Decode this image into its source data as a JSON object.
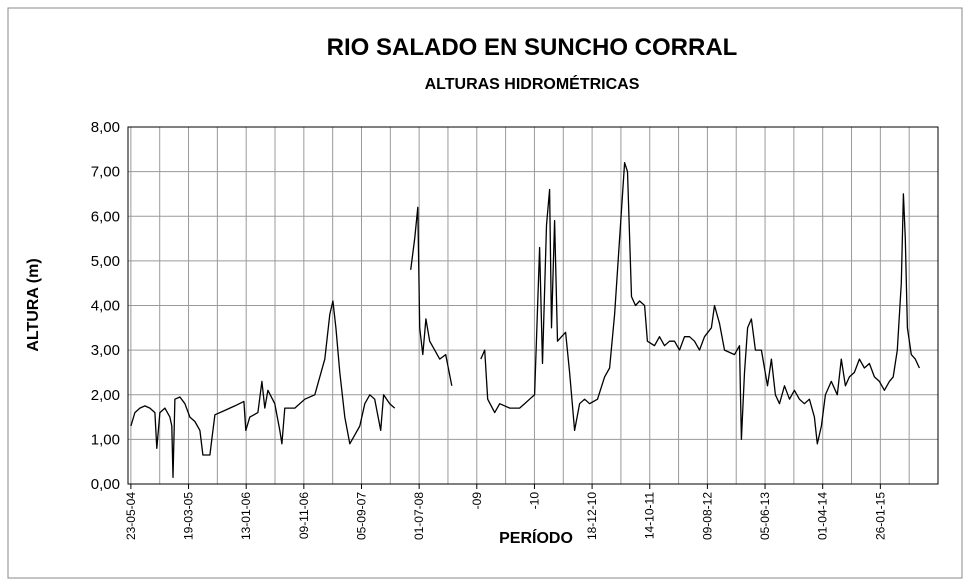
{
  "chart_data": {
    "type": "line",
    "title": "RIO SALADO EN SUNCHO CORRAL",
    "subtitle": "ALTURAS HIDROMÉTRICAS",
    "ylabel": "ALTURA (m)",
    "xlabel": "PERÍODO",
    "color": "#000000",
    "grid": true,
    "xlim": [
      -15,
      4200
    ],
    "xticks": [
      {
        "value": 0,
        "label": "23-05-04"
      },
      {
        "value": 300,
        "label": "19-03-05"
      },
      {
        "value": 600,
        "label": "13-01-06"
      },
      {
        "value": 900,
        "label": "09-11-06"
      },
      {
        "value": 1200,
        "label": "05-09-07"
      },
      {
        "value": 1500,
        "label": "01-07-08"
      },
      {
        "value": 1800,
        "label": "-09"
      },
      {
        "value": 2100,
        "label": "-10"
      },
      {
        "value": 2400,
        "label": "18-12-10"
      },
      {
        "value": 2700,
        "label": "14-10-11"
      },
      {
        "value": 3000,
        "label": "09-08-12"
      },
      {
        "value": 3300,
        "label": "05-06-13"
      },
      {
        "value": 3600,
        "label": "01-04-14"
      },
      {
        "value": 3900,
        "label": "26-01-15"
      }
    ],
    "xminorticks": [
      150,
      450,
      750,
      1050,
      1350,
      1650,
      1950,
      2250,
      2550,
      2850,
      3150,
      3450,
      3750,
      4050
    ],
    "ylim": [
      0,
      8
    ],
    "yticks": [
      {
        "value": 0,
        "label": "0,00"
      },
      {
        "value": 1,
        "label": "1,00"
      },
      {
        "value": 2,
        "label": "2,00"
      },
      {
        "value": 3,
        "label": "3,00"
      },
      {
        "value": 4,
        "label": "4,00"
      },
      {
        "value": 5,
        "label": "5,00"
      },
      {
        "value": 6,
        "label": "6,00"
      },
      {
        "value": 7,
        "label": "7,00"
      },
      {
        "value": 8,
        "label": "8,00"
      }
    ],
    "x": [
      0,
      21,
      47,
      73,
      99,
      125,
      135,
      151,
      177,
      203,
      213,
      219,
      229,
      255,
      281,
      307,
      333,
      359,
      375,
      411,
      421,
      437,
      489,
      541,
      588,
      598,
      619,
      661,
      682,
      697,
      713,
      749,
      775,
      786,
      801,
      853,
      905,
      957,
      983,
      1009,
      1035,
      1051,
      1067,
      1087,
      1113,
      1139,
      1165,
      1191,
      1217,
      1243,
      1269,
      1300,
      1315,
      1347,
      1373,
      1400,
      1456,
      1477,
      1493,
      1503,
      1519,
      1535,
      1555,
      1581,
      1607,
      1638,
      1670,
      1720,
      1821,
      1841,
      1857,
      1893,
      1919,
      1971,
      2023,
      2049,
      2075,
      2101,
      2127,
      2142,
      2163,
      2179,
      2189,
      2205,
      2220,
      2241,
      2262,
      2283,
      2309,
      2335,
      2361,
      2387,
      2428,
      2465,
      2491,
      2517,
      2543,
      2569,
      2584,
      2605,
      2626,
      2647,
      2673,
      2688,
      2725,
      2751,
      2777,
      2803,
      2829,
      2855,
      2881,
      2907,
      2933,
      2959,
      2985,
      3021,
      3037,
      3063,
      3089,
      3141,
      3167,
      3177,
      3193,
      3209,
      3229,
      3250,
      3281,
      3313,
      3333,
      3354,
      3375,
      3401,
      3427,
      3453,
      3479,
      3505,
      3531,
      3557,
      3572,
      3593,
      3614,
      3645,
      3676,
      3697,
      3718,
      3739,
      3765,
      3791,
      3817,
      3843,
      3869,
      3895,
      3921,
      3947,
      3967,
      3988,
      4009,
      4020,
      4030,
      4041,
      4061,
      4082,
      4103
    ],
    "values": [
      1.3,
      1.6,
      1.7,
      1.75,
      1.7,
      1.6,
      0.8,
      1.6,
      1.7,
      1.5,
      1.3,
      0.15,
      1.9,
      1.95,
      1.8,
      1.5,
      1.4,
      1.2,
      0.65,
      0.65,
      1.0,
      1.55,
      1.65,
      1.75,
      1.85,
      1.2,
      1.5,
      1.6,
      2.3,
      1.7,
      2.1,
      1.8,
      1.2,
      0.9,
      1.7,
      1.7,
      1.9,
      2.0,
      2.4,
      2.8,
      3.8,
      4.1,
      3.5,
      2.5,
      1.5,
      0.9,
      1.1,
      1.3,
      1.8,
      2.0,
      1.9,
      1.2,
      2.0,
      1.8,
      1.7,
      null,
      4.8,
      5.5,
      6.2,
      3.5,
      2.9,
      3.7,
      3.2,
      3.0,
      2.8,
      2.9,
      2.2,
      null,
      2.8,
      3.0,
      1.9,
      1.6,
      1.8,
      1.7,
      1.7,
      1.8,
      1.9,
      2.0,
      5.3,
      2.7,
      5.8,
      6.6,
      3.5,
      5.9,
      3.2,
      3.3,
      3.4,
      2.5,
      1.2,
      1.8,
      1.9,
      1.8,
      1.9,
      2.4,
      2.6,
      3.8,
      5.5,
      7.2,
      7.0,
      4.2,
      4.0,
      4.1,
      4.0,
      3.2,
      3.1,
      3.3,
      3.1,
      3.2,
      3.2,
      3.0,
      3.3,
      3.3,
      3.2,
      3.0,
      3.3,
      3.5,
      4.0,
      3.6,
      3.0,
      2.9,
      3.1,
      1.0,
      2.5,
      3.5,
      3.7,
      3.0,
      3.0,
      2.2,
      2.8,
      2.0,
      1.8,
      2.2,
      1.9,
      2.1,
      1.9,
      1.8,
      1.9,
      1.5,
      0.9,
      1.3,
      2.0,
      2.3,
      2.0,
      2.8,
      2.2,
      2.4,
      2.5,
      2.8,
      2.6,
      2.7,
      2.4,
      2.3,
      2.1,
      2.3,
      2.4,
      3.0,
      4.5,
      6.5,
      5.5,
      3.5,
      2.9,
      2.8,
      2.6
    ]
  }
}
